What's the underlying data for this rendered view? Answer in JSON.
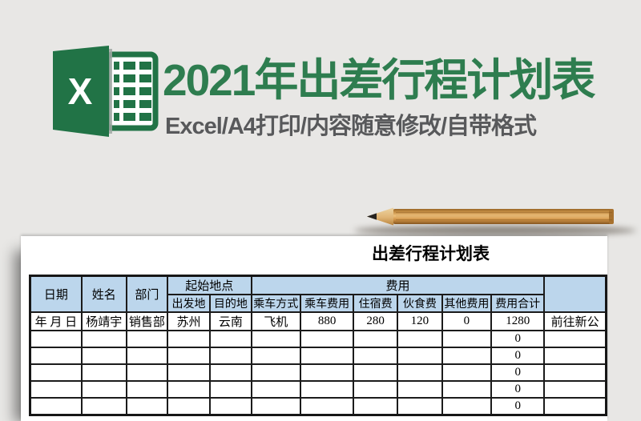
{
  "page": {
    "background": "#e8e7e5"
  },
  "hero": {
    "title": "2021年出差行程计划表",
    "title_color": "#2e7d4f",
    "subtitle": "Excel/A4打印/内容随意修改/自带格式",
    "subtitle_color": "#58595b",
    "excel_letter": "X",
    "excel_green": "#217346"
  },
  "sheet": {
    "title": "出差行程计划表",
    "header_fill": "#bcd6ec",
    "header": {
      "date": "日期",
      "name": "姓名",
      "dept": "部门",
      "origin_group": "起始地点",
      "departure": "出发地",
      "destination": "目的地",
      "cost_group": "费用",
      "transport_mode": "乘车方式",
      "transport_fee": "乘车费用",
      "lodging_fee": "住宿费",
      "meal_fee": "伙食费",
      "other_fee": "其他费用",
      "total_fee": "费用合计",
      "remark": ""
    },
    "rows": [
      [
        "年 月 日",
        "杨靖宇",
        "销售部",
        "苏州",
        "云南",
        "飞机",
        "880",
        "280",
        "120",
        "0",
        "1280",
        "前往新公"
      ],
      [
        "",
        "",
        "",
        "",
        "",
        "",
        "",
        "",
        "",
        "",
        "0",
        ""
      ],
      [
        "",
        "",
        "",
        "",
        "",
        "",
        "",
        "",
        "",
        "",
        "0",
        ""
      ],
      [
        "",
        "",
        "",
        "",
        "",
        "",
        "",
        "",
        "",
        "",
        "0",
        ""
      ],
      [
        "",
        "",
        "",
        "",
        "",
        "",
        "",
        "",
        "",
        "",
        "0",
        ""
      ],
      [
        "",
        "",
        "",
        "",
        "",
        "",
        "",
        "",
        "",
        "",
        "0",
        ""
      ]
    ]
  }
}
